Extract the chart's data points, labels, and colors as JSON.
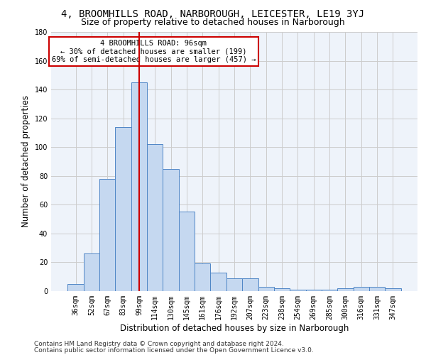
{
  "title1": "4, BROOMHILLS ROAD, NARBOROUGH, LEICESTER, LE19 3YJ",
  "title2": "Size of property relative to detached houses in Narborough",
  "xlabel": "Distribution of detached houses by size in Narborough",
  "ylabel": "Number of detached properties",
  "categories": [
    "36sqm",
    "52sqm",
    "67sqm",
    "83sqm",
    "99sqm",
    "114sqm",
    "130sqm",
    "145sqm",
    "161sqm",
    "176sqm",
    "192sqm",
    "207sqm",
    "223sqm",
    "238sqm",
    "254sqm",
    "269sqm",
    "285sqm",
    "300sqm",
    "316sqm",
    "331sqm",
    "347sqm"
  ],
  "values": [
    5,
    26,
    78,
    114,
    145,
    102,
    85,
    55,
    19,
    13,
    9,
    9,
    3,
    2,
    1,
    1,
    1,
    2,
    3,
    3,
    2
  ],
  "bar_color": "#c5d8f0",
  "bar_edge_color": "#4f86c6",
  "vline_x": 4,
  "vline_color": "#cc0000",
  "annotation_text": "4 BROOMHILLS ROAD: 96sqm\n← 30% of detached houses are smaller (199)\n69% of semi-detached houses are larger (457) →",
  "annotation_box_color": "white",
  "annotation_box_edge": "#cc0000",
  "ylim": [
    0,
    180
  ],
  "yticks": [
    0,
    20,
    40,
    60,
    80,
    100,
    120,
    140,
    160,
    180
  ],
  "grid_color": "#cccccc",
  "bg_color": "#eef3fa",
  "footer1": "Contains HM Land Registry data © Crown copyright and database right 2024.",
  "footer2": "Contains public sector information licensed under the Open Government Licence v3.0.",
  "title1_fontsize": 10,
  "title2_fontsize": 9,
  "xlabel_fontsize": 8.5,
  "ylabel_fontsize": 8.5,
  "tick_fontsize": 7,
  "annotation_fontsize": 7.5,
  "footer_fontsize": 6.5
}
